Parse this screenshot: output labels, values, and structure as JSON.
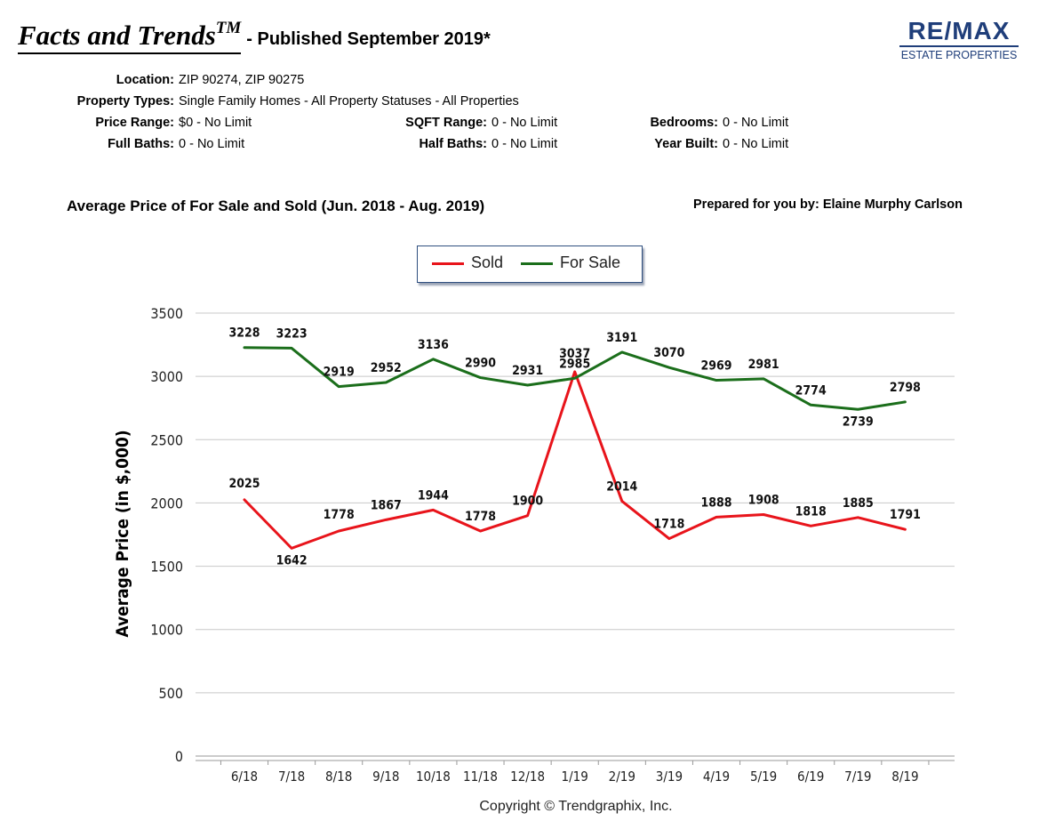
{
  "header": {
    "brand": "Facts and Trends",
    "brand_tm": "TM",
    "published": "- Published September 2019*"
  },
  "logo": {
    "main": "RE/MAX",
    "sub": "ESTATE PROPERTIES",
    "color": "#1f3e7a"
  },
  "criteria": {
    "location_label": "Location:",
    "location_value": "ZIP 90274, ZIP 90275",
    "types_label": "Property Types:",
    "types_value": "Single Family Homes - All Property Statuses - All Properties",
    "price_label": "Price Range:",
    "price_value": "$0 - No Limit",
    "sqft_label": "SQFT Range:",
    "sqft_value": "0 - No Limit",
    "bedrooms_label": "Bedrooms:",
    "bedrooms_value": "0 - No Limit",
    "fullbaths_label": "Full Baths:",
    "fullbaths_value": "0 - No Limit",
    "halfbaths_label": "Half Baths:",
    "halfbaths_value": "0 - No Limit",
    "yearbuilt_label": "Year Built:",
    "yearbuilt_value": "0 - No Limit"
  },
  "prepared_by": "Prepared for you by: Elaine Murphy Carlson",
  "copyright": "Copyright © Trendgraphix, Inc.",
  "chart_data": {
    "type": "line",
    "title": "Average Price of For Sale and Sold (Jun. 2018 - Aug. 2019)",
    "xlabel": "",
    "ylabel": "Average Price (in $,000)",
    "categories": [
      "6/18",
      "7/18",
      "8/18",
      "9/18",
      "10/18",
      "11/18",
      "12/18",
      "1/19",
      "2/19",
      "3/19",
      "4/19",
      "5/19",
      "6/19",
      "7/19",
      "8/19"
    ],
    "series": [
      {
        "name": "Sold",
        "color": "#e8141b",
        "values": [
          2025,
          1642,
          1778,
          1867,
          1944,
          1778,
          1900,
          3037,
          2014,
          1718,
          1888,
          1908,
          1818,
          1885,
          1791
        ]
      },
      {
        "name": "For Sale",
        "color": "#1b6e1b",
        "values": [
          3228,
          3223,
          2919,
          2952,
          3136,
          2990,
          2931,
          2985,
          3191,
          3070,
          2969,
          2981,
          2774,
          2739,
          2798
        ]
      }
    ],
    "ylim": [
      0,
      3500
    ],
    "yticks": [
      0,
      500,
      1000,
      1500,
      2000,
      2500,
      3000,
      3500
    ],
    "grid": true,
    "legend": "top-center"
  }
}
